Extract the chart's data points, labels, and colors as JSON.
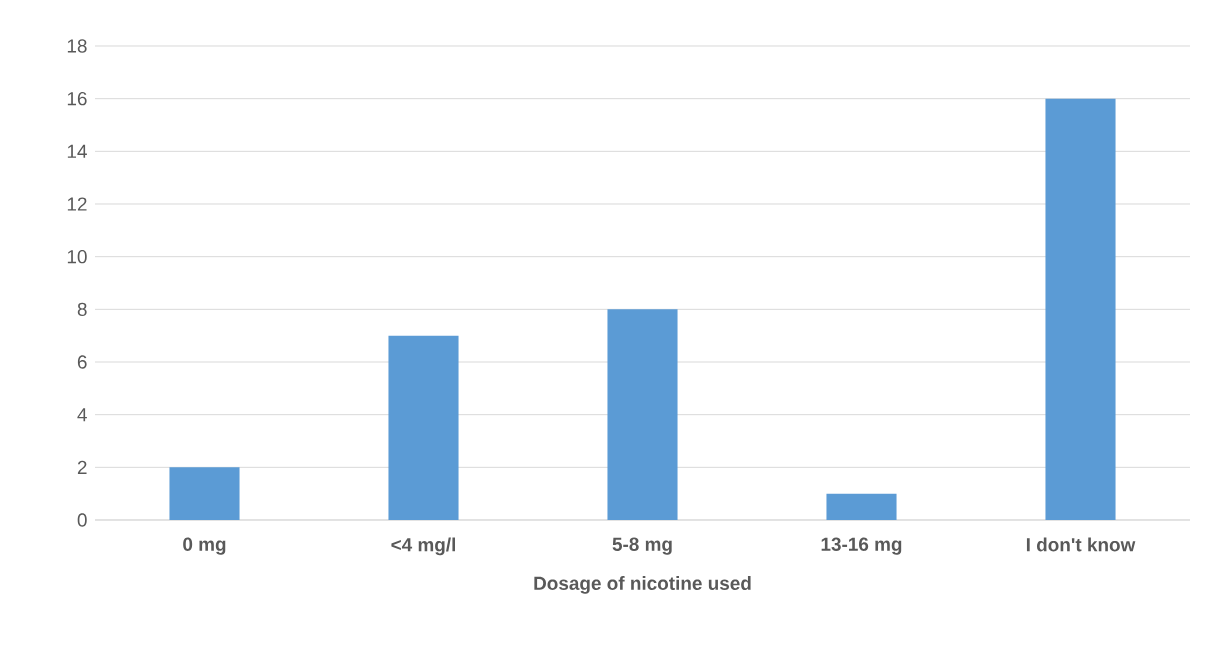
{
  "chart_data": {
    "type": "bar",
    "xlabel": "Dosage of nicotine used",
    "categories": [
      "0 mg",
      "<4 mg/l",
      "5-8 mg",
      "13-16 mg",
      "I don't know"
    ],
    "values": [
      2,
      7,
      8,
      1,
      16
    ],
    "color": "#5b9bd5",
    "ylim": [
      0,
      18
    ],
    "yticks": [
      0,
      2,
      4,
      6,
      8,
      10,
      12,
      14,
      16,
      18
    ],
    "grid": "y"
  }
}
